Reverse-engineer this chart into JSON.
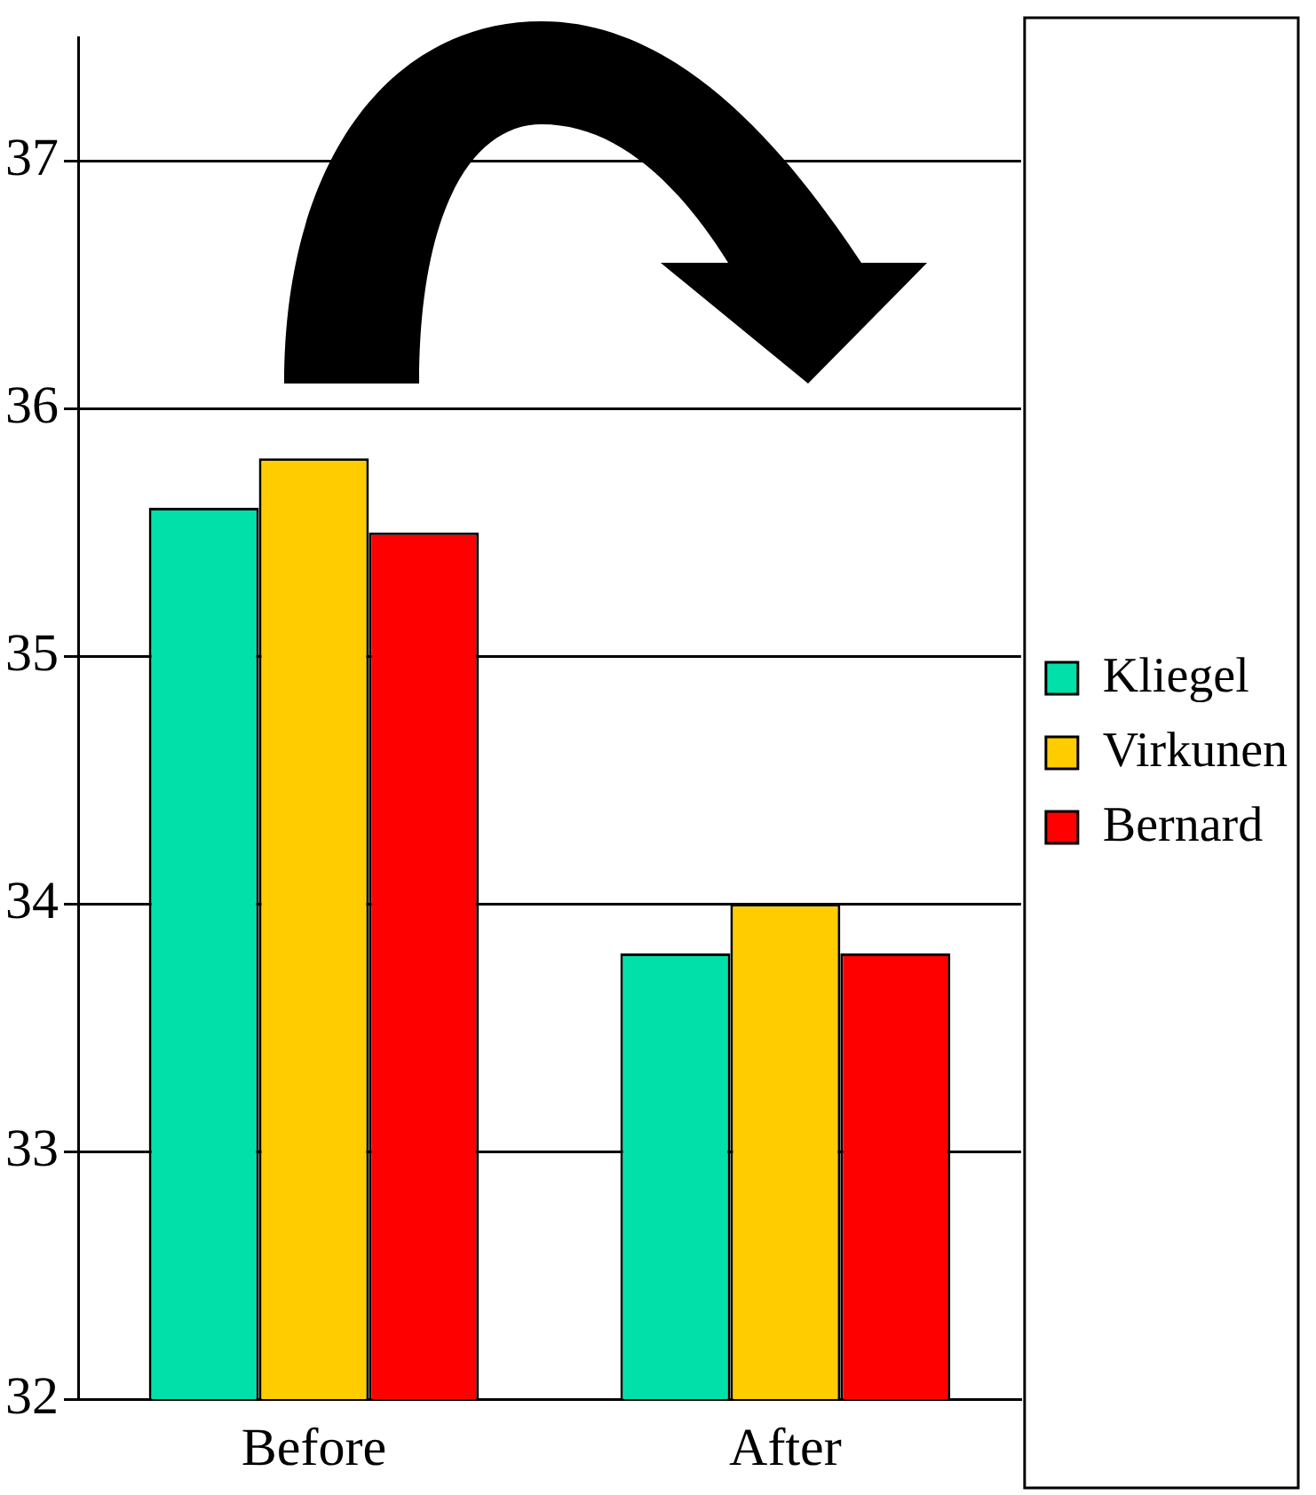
{
  "chart_data": {
    "type": "bar",
    "categories": [
      "Before",
      "After"
    ],
    "series": [
      {
        "name": "Kliegel",
        "color": "#00e0a8",
        "values": [
          35.6,
          33.8
        ]
      },
      {
        "name": "Virkunen",
        "color": "#ffcc00",
        "values": [
          35.8,
          34.0
        ]
      },
      {
        "name": "Bernard",
        "color": "#ff0000",
        "values": [
          35.5,
          33.8
        ]
      }
    ],
    "ylim": [
      32,
      37.5
    ],
    "yticks": [
      32,
      33,
      34,
      35,
      36,
      37
    ],
    "grid": "y",
    "legend": "right"
  }
}
